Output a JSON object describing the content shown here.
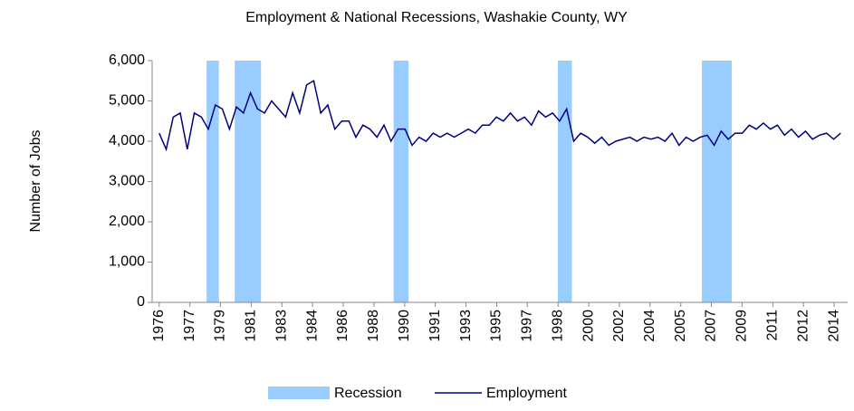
{
  "chart_data": {
    "type": "line",
    "title": "Employment & National Recessions, Washakie County, WY",
    "y_label": "Number of Jobs",
    "xlim": [
      1975.6,
      2015.2
    ],
    "xticks": [
      {
        "value": 1976,
        "label": "1976"
      },
      {
        "value": 1977.75,
        "label": "1977"
      },
      {
        "value": 1979.49,
        "label": "1979"
      },
      {
        "value": 1981.24,
        "label": "1981"
      },
      {
        "value": 1982.99,
        "label": "1983"
      },
      {
        "value": 1984.73,
        "label": "1984"
      },
      {
        "value": 1986.48,
        "label": "1986"
      },
      {
        "value": 1988.23,
        "label": "1988"
      },
      {
        "value": 1989.98,
        "label": "1990"
      },
      {
        "value": 1991.72,
        "label": "1991"
      },
      {
        "value": 1993.47,
        "label": "1993"
      },
      {
        "value": 1995.22,
        "label": "1995"
      },
      {
        "value": 1996.96,
        "label": "1997"
      },
      {
        "value": 1998.71,
        "label": "1998"
      },
      {
        "value": 2000.46,
        "label": "2000"
      },
      {
        "value": 2002.2,
        "label": "2002"
      },
      {
        "value": 2003.95,
        "label": "2004"
      },
      {
        "value": 2005.7,
        "label": "2005"
      },
      {
        "value": 2007.44,
        "label": "2007"
      },
      {
        "value": 2009.19,
        "label": "2009"
      },
      {
        "value": 2010.94,
        "label": "2011"
      },
      {
        "value": 2012.68,
        "label": "2012"
      },
      {
        "value": 2014.43,
        "label": "2014"
      }
    ],
    "ylim": [
      0,
      6000
    ],
    "yticks": [
      0,
      {
        "value": 1000,
        "label": "1,000"
      },
      {
        "value": 2000,
        "label": "2,000"
      },
      {
        "value": 3000,
        "label": "3,000"
      },
      {
        "value": 4000,
        "label": "4,000"
      },
      {
        "value": 5000,
        "label": "5,000"
      },
      {
        "value": 6000,
        "label": "6,000"
      }
    ],
    "recessions": {
      "name": "Recession",
      "color": "#99ccff",
      "ranges": [
        [
          1978.7,
          1979.4
        ],
        [
          1980.3,
          1981.8
        ],
        [
          1989.35,
          1990.2
        ],
        [
          1998.7,
          1999.5
        ],
        [
          2006.9,
          2008.6
        ]
      ]
    },
    "x": [
      1976.0,
      1976.4,
      1976.8,
      1977.2,
      1977.6,
      1978.0,
      1978.4,
      1978.8,
      1979.2,
      1979.6,
      1980.0,
      1980.4,
      1980.8,
      1981.2,
      1981.6,
      1982.0,
      1982.4,
      1982.8,
      1983.2,
      1983.6,
      1984.0,
      1984.4,
      1984.8,
      1985.2,
      1985.6,
      1986.0,
      1986.4,
      1986.8,
      1987.2,
      1987.6,
      1988.0,
      1988.4,
      1988.8,
      1989.2,
      1989.6,
      1990.0,
      1990.4,
      1990.8,
      1991.2,
      1991.6,
      1992.0,
      1992.4,
      1992.8,
      1993.2,
      1993.6,
      1994.0,
      1994.4,
      1994.8,
      1995.2,
      1995.6,
      1996.0,
      1996.4,
      1996.8,
      1997.2,
      1997.6,
      1998.0,
      1998.4,
      1998.8,
      1999.2,
      1999.6,
      2000.0,
      2000.4,
      2000.8,
      2001.2,
      2001.6,
      2002.0,
      2002.4,
      2002.8,
      2003.2,
      2003.6,
      2004.0,
      2004.4,
      2004.8,
      2005.2,
      2005.6,
      2006.0,
      2006.4,
      2006.8,
      2007.2,
      2007.6,
      2008.0,
      2008.4,
      2008.8,
      2009.2,
      2009.6,
      2010.0,
      2010.4,
      2010.8,
      2011.2,
      2011.6,
      2012.0,
      2012.4,
      2012.8,
      2013.2,
      2013.6,
      2014.0,
      2014.4,
      2014.8
    ],
    "series": [
      {
        "name": "Employment",
        "color": "#000080",
        "values": [
          4200,
          3800,
          4600,
          4700,
          3800,
          4700,
          4600,
          4300,
          4900,
          4800,
          4300,
          4850,
          4700,
          5200,
          4800,
          4700,
          5000,
          4800,
          4600,
          5200,
          4700,
          5400,
          5500,
          4700,
          4900,
          4300,
          4500,
          4500,
          4100,
          4400,
          4300,
          4100,
          4400,
          4000,
          4300,
          4300,
          3900,
          4100,
          4000,
          4200,
          4100,
          4200,
          4100,
          4200,
          4300,
          4200,
          4400,
          4400,
          4600,
          4500,
          4700,
          4500,
          4600,
          4400,
          4750,
          4600,
          4700,
          4500,
          4800,
          4000,
          4200,
          4100,
          3950,
          4100,
          3900,
          4000,
          4050,
          4100,
          4000,
          4100,
          4050,
          4100,
          4000,
          4200,
          3900,
          4100,
          4000,
          4100,
          4150,
          3900,
          4250,
          4050,
          4200,
          4200,
          4400,
          4300,
          4450,
          4300,
          4400,
          4150,
          4300,
          4100,
          4250,
          4050,
          4150,
          4200,
          4050,
          4200
        ]
      }
    ]
  }
}
